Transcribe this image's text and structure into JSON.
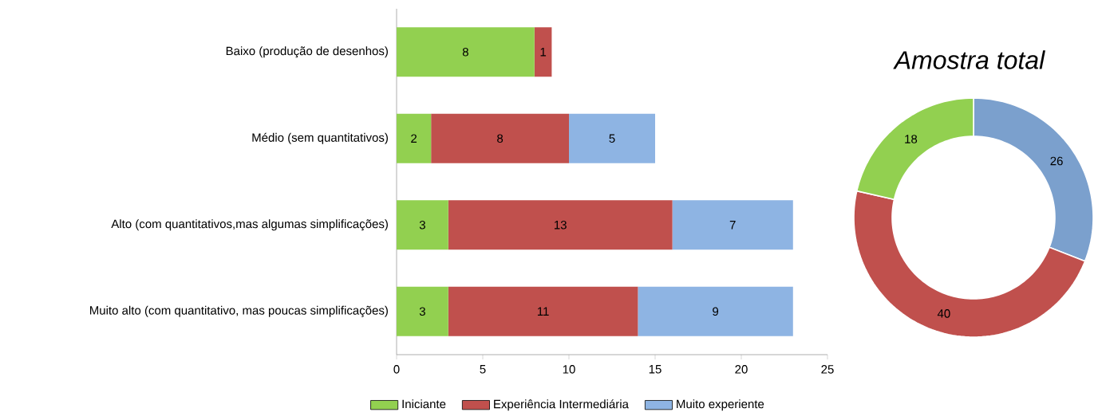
{
  "chart_data": [
    {
      "type": "bar",
      "orientation": "horizontal",
      "stacked": true,
      "data_labels": true,
      "legend": "bottom",
      "categories": [
        "Baixo (produção de desenhos)",
        "Médio (sem quantitativos)",
        "Alto (com quantitativos,mas  algumas simplificações)",
        "Muito alto (com quantitativo, mas poucas simplificações)"
      ],
      "series": [
        {
          "name": "Iniciante",
          "color": "#92d050",
          "values": [
            8,
            2,
            3,
            3
          ]
        },
        {
          "name": "Experiência Intermediária",
          "color": "#c0504d",
          "values": [
            1,
            8,
            13,
            11
          ]
        },
        {
          "name": "Muito experiente",
          "color": "#8eb4e3",
          "values": [
            null,
            5,
            7,
            9
          ]
        }
      ],
      "xlim": [
        0,
        25
      ],
      "xticks": [
        0,
        5,
        10,
        15,
        20,
        25
      ]
    },
    {
      "type": "donut",
      "title": "Amostra total",
      "data_labels": true,
      "categories": [
        null,
        null,
        null
      ],
      "values": [
        26,
        40,
        18
      ],
      "colors": [
        "#7ba0cd",
        "#c0504d",
        "#92d050"
      ]
    }
  ]
}
